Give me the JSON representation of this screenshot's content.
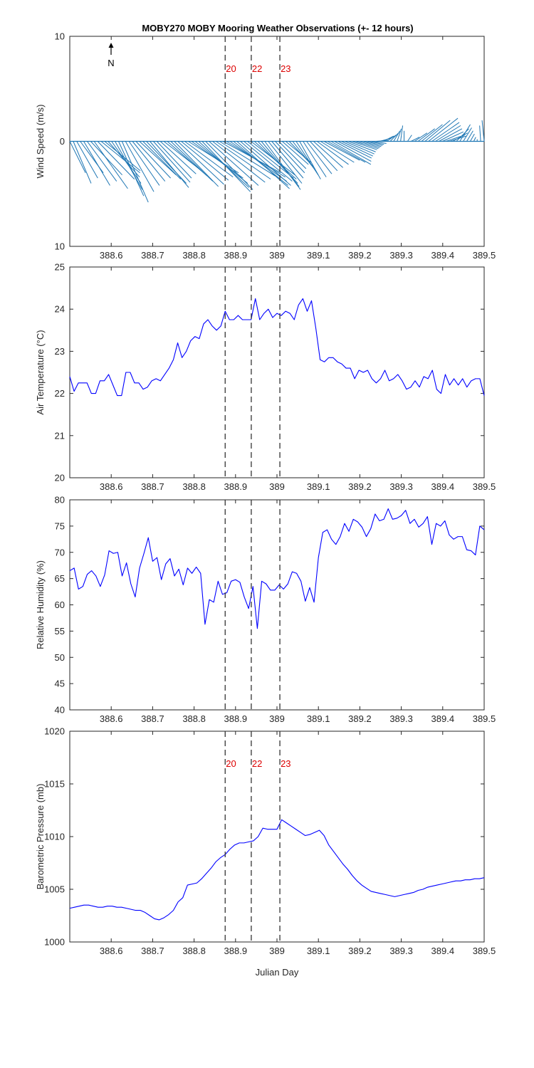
{
  "chart_data": {
    "type": "line",
    "title": "MOBY270 MOBY Mooring Weather Observations (+- 12 hours)",
    "xlabel": "Julian Day",
    "xlim": [
      388.5,
      389.5
    ],
    "xticks": [
      388.6,
      388.7,
      388.8,
      388.9,
      389,
      389.1,
      389.2,
      389.3,
      389.4,
      389.5
    ],
    "xtick_labels": [
      "388.6",
      "388.7",
      "388.8",
      "388.9",
      "389",
      "389.1",
      "389.2",
      "389.3",
      "389.4",
      "389.5"
    ],
    "event_markers": [
      {
        "x": 388.875,
        "label": "20"
      },
      {
        "x": 388.938,
        "label": "22"
      },
      {
        "x": 389.007,
        "label": "23"
      }
    ],
    "north_label": "N",
    "colors": {
      "wind": "#1f77b4",
      "line": "#0000ff",
      "event_text": "#dd0000",
      "event_line": "#333333"
    },
    "panels": [
      {
        "id": "wind",
        "type": "quiver",
        "ylabel": "Wind Speed (m/s)",
        "ylim": [
          -10,
          10
        ],
        "ytick_values": [
          -10,
          0,
          10
        ],
        "ytick_labels": [
          "10",
          "0",
          "10"
        ],
        "show_event_labels": true,
        "u": [
          1.5,
          1.7,
          2.0,
          2.2,
          2.5,
          2.8,
          3.0,
          3.2,
          3.5,
          3.7,
          3.4,
          3.0,
          2.8,
          2.6,
          2.4,
          2.5,
          2.7,
          2.9,
          3.1,
          3.3,
          3.5,
          3.6,
          3.8,
          3.7,
          3.5,
          3.3,
          3.4,
          3.6,
          3.8,
          4.0,
          4.2,
          4.4,
          4.5,
          4.6,
          4.8,
          4.9,
          5.0,
          4.8,
          4.6,
          4.5,
          4.7,
          5.0,
          5.2,
          5.3,
          5.5,
          5.6,
          5.4,
          5.2,
          5.0,
          4.8,
          4.6,
          4.4,
          4.2,
          4.0,
          3.8,
          3.6,
          3.4,
          3.2,
          3.0,
          2.8,
          2.6,
          2.5,
          2.4,
          2.3,
          2.2,
          2.1,
          2.0,
          2.2,
          2.4,
          2.6,
          2.8,
          3.0,
          3.2,
          3.4,
          3.6,
          3.8,
          3.5,
          3.2,
          3.0,
          2.8,
          2.6,
          2.4,
          2.2,
          2.0,
          1.8,
          1.6,
          1.4,
          1.3,
          1.2,
          1.1,
          1.0,
          0.9,
          0.8,
          0.6,
          0.4,
          0.2,
          0.0,
          0.4,
          0.8,
          1.2,
          1.6,
          2.0,
          2.4,
          2.8,
          2.6,
          2.4,
          2.2,
          2.0,
          1.8,
          1.6,
          1.4,
          1.2,
          1.0,
          0.8,
          0.6,
          0.4,
          0.2,
          0.0,
          -0.1,
          -0.2
        ],
        "v": [
          -3.0,
          -4.0,
          -3.5,
          -3.0,
          -4.2,
          -3.8,
          -3.2,
          -4.5,
          -3.6,
          -3.0,
          -2.8,
          -3.4,
          -4.0,
          -4.6,
          -5.2,
          -5.8,
          -4.8,
          -4.2,
          -3.8,
          -3.5,
          -3.2,
          -3.6,
          -4.0,
          -4.4,
          -3.9,
          -3.5,
          -3.1,
          -2.8,
          -3.3,
          -3.8,
          -4.3,
          -4.1,
          -3.7,
          -3.4,
          -3.0,
          -3.5,
          -4.0,
          -4.4,
          -4.8,
          -4.6,
          -4.2,
          -3.9,
          -3.6,
          -3.3,
          -3.0,
          -3.4,
          -3.8,
          -4.2,
          -4.5,
          -4.2,
          -3.8,
          -3.5,
          -3.2,
          -3.6,
          -4.0,
          -4.3,
          -4.6,
          -4.0,
          -3.5,
          -3.0,
          -2.6,
          -2.2,
          -2.0,
          -2.4,
          -2.8,
          -3.2,
          -3.6,
          -3.4,
          -3.1,
          -2.8,
          -2.5,
          -2.2,
          -2.0,
          -1.8,
          -2.0,
          -2.2,
          -1.9,
          -1.6,
          -1.4,
          -1.2,
          -1.0,
          -0.8,
          -0.7,
          -0.6,
          -0.5,
          -0.4,
          -0.3,
          -0.2,
          0.1,
          0.3,
          0.5,
          0.6,
          0.8,
          1.0,
          1.2,
          1.5,
          1.0,
          0.6,
          0.4,
          0.8,
          1.2,
          1.6,
          2.0,
          2.2,
          1.8,
          1.5,
          1.2,
          0.9,
          0.6,
          0.5,
          0.8,
          1.2,
          1.6,
          1.3,
          1.0,
          0.7,
          0.4,
          0.2,
          1.5,
          2.0
        ]
      },
      {
        "id": "temp",
        "type": "line",
        "ylabel": "Air Temperature (°C)",
        "ylim": [
          20,
          25
        ],
        "ytick_values": [
          20,
          21,
          22,
          23,
          24,
          25
        ],
        "ytick_labels": [
          "20",
          "21",
          "22",
          "23",
          "24",
          "25"
        ],
        "show_event_labels": false,
        "y": [
          22.4,
          22.05,
          22.25,
          22.25,
          22.25,
          22.0,
          22.0,
          22.3,
          22.3,
          22.45,
          22.2,
          21.95,
          21.95,
          22.5,
          22.5,
          22.25,
          22.25,
          22.1,
          22.15,
          22.3,
          22.35,
          22.3,
          22.45,
          22.6,
          22.8,
          23.2,
          22.85,
          23.0,
          23.25,
          23.35,
          23.3,
          23.65,
          23.75,
          23.6,
          23.5,
          23.6,
          23.95,
          23.75,
          23.75,
          23.85,
          23.75,
          23.75,
          23.75,
          24.25,
          23.75,
          23.9,
          24.0,
          23.8,
          23.9,
          23.85,
          23.95,
          23.9,
          23.75,
          24.1,
          24.25,
          23.95,
          24.2,
          23.55,
          22.8,
          22.75,
          22.85,
          22.85,
          22.75,
          22.7,
          22.6,
          22.6,
          22.35,
          22.55,
          22.5,
          22.55,
          22.35,
          22.25,
          22.35,
          22.55,
          22.3,
          22.35,
          22.45,
          22.3,
          22.1,
          22.15,
          22.3,
          22.15,
          22.4,
          22.35,
          22.55,
          22.1,
          22.0,
          22.45,
          22.2,
          22.35,
          22.2,
          22.35,
          22.15,
          22.3,
          22.35,
          22.35,
          21.95
        ]
      },
      {
        "id": "rh",
        "type": "line",
        "ylabel": "Relative Humidity (%)",
        "ylim": [
          40,
          80
        ],
        "ytick_values": [
          40,
          45,
          50,
          55,
          60,
          65,
          70,
          75,
          80
        ],
        "ytick_labels": [
          "40",
          "45",
          "50",
          "55",
          "60",
          "65",
          "70",
          "75",
          "80"
        ],
        "show_event_labels": false,
        "y": [
          66.5,
          67.0,
          63.0,
          63.5,
          65.8,
          66.5,
          65.5,
          63.5,
          65.7,
          70.3,
          69.8,
          70.0,
          65.5,
          68.0,
          64.0,
          61.5,
          67.0,
          69.8,
          72.8,
          68.3,
          69.0,
          64.8,
          67.8,
          68.8,
          65.5,
          66.8,
          63.8,
          67.0,
          66.0,
          67.2,
          66.0,
          56.3,
          61.0,
          60.5,
          64.5,
          62.0,
          62.3,
          64.5,
          64.8,
          64.3,
          61.5,
          59.3,
          63.5,
          55.5,
          64.5,
          64.0,
          62.8,
          62.8,
          63.8,
          63.0,
          64.0,
          66.3,
          66.0,
          64.5,
          60.7,
          63.3,
          60.5,
          69.0,
          73.8,
          74.3,
          72.5,
          71.5,
          73.0,
          75.5,
          74.0,
          76.3,
          75.8,
          74.8,
          73.0,
          74.5,
          77.3,
          76.0,
          76.3,
          78.3,
          76.3,
          76.5,
          77.0,
          78.0,
          75.5,
          76.3,
          74.8,
          75.5,
          76.8,
          71.5,
          75.5,
          75.0,
          76.0,
          73.3,
          72.5,
          73.0,
          73.0,
          70.5,
          70.3,
          69.5,
          75.0,
          74.3
        ]
      },
      {
        "id": "pressure",
        "type": "line",
        "ylabel": "Barometric Pressure (mb)",
        "ylim": [
          1000,
          1020
        ],
        "ytick_values": [
          1000,
          1005,
          1010,
          1015,
          1020
        ],
        "ytick_labels": [
          "1000",
          "1005",
          "1010",
          "1015",
          "1020"
        ],
        "show_event_labels": true,
        "y": [
          1003.2,
          1003.3,
          1003.4,
          1003.5,
          1003.5,
          1003.4,
          1003.3,
          1003.3,
          1003.4,
          1003.4,
          1003.3,
          1003.3,
          1003.2,
          1003.1,
          1003.0,
          1003.0,
          1002.8,
          1002.5,
          1002.2,
          1002.1,
          1002.3,
          1002.6,
          1003.0,
          1003.8,
          1004.2,
          1005.4,
          1005.5,
          1005.6,
          1006.0,
          1006.5,
          1007.0,
          1007.6,
          1008.0,
          1008.3,
          1008.8,
          1009.2,
          1009.4,
          1009.4,
          1009.5,
          1009.6,
          1010.0,
          1010.8,
          1010.7,
          1010.7,
          1010.7,
          1011.6,
          1011.3,
          1011.0,
          1010.7,
          1010.4,
          1010.1,
          1010.2,
          1010.4,
          1010.6,
          1010.1,
          1009.2,
          1008.6,
          1008.0,
          1007.4,
          1006.9,
          1006.3,
          1005.8,
          1005.4,
          1005.1,
          1004.8,
          1004.7,
          1004.6,
          1004.5,
          1004.4,
          1004.3,
          1004.4,
          1004.5,
          1004.6,
          1004.7,
          1004.9,
          1005.0,
          1005.2,
          1005.3,
          1005.4,
          1005.5,
          1005.6,
          1005.7,
          1005.8,
          1005.8,
          1005.9,
          1005.9,
          1006.0,
          1006.0,
          1006.1
        ]
      }
    ]
  }
}
